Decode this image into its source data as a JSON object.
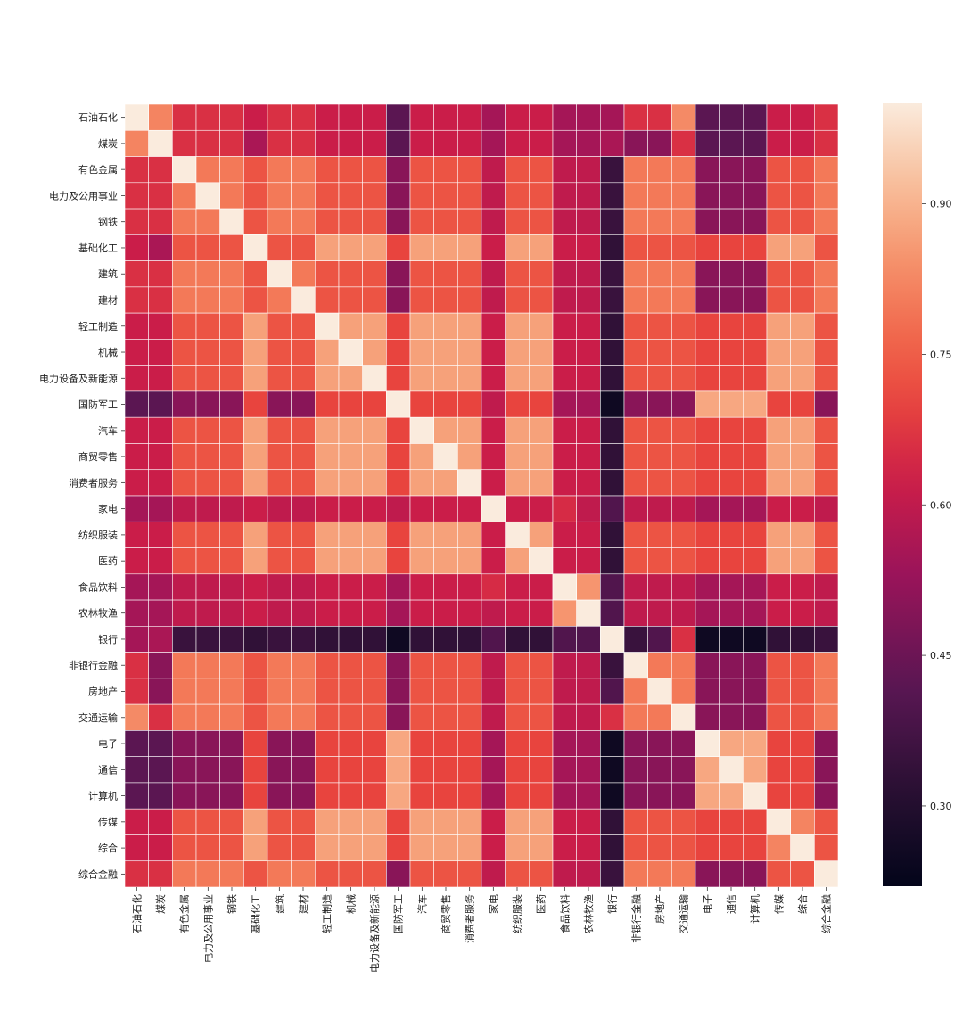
{
  "chart_data": {
    "type": "heatmap",
    "title": "",
    "xlabel": "",
    "ylabel": "",
    "labels": [
      "石油石化",
      "煤炭",
      "有色金属",
      "电力及公用事业",
      "钢铁",
      "基础化工",
      "建筑",
      "建材",
      "轻工制造",
      "机械",
      "电力设备及新能源",
      "国防军工",
      "汽车",
      "商贸零售",
      "消费者服务",
      "家电",
      "纺织服装",
      "医药",
      "食品饮料",
      "农林牧渔",
      "银行",
      "非银行金融",
      "房地产",
      "交通运输",
      "电子",
      "通信",
      "计算机",
      "传媒",
      "综合",
      "综合金融"
    ],
    "groups": [
      0,
      0,
      1,
      1,
      1,
      2,
      1,
      1,
      2,
      2,
      2,
      3,
      2,
      2,
      2,
      5,
      2,
      2,
      5,
      5,
      4,
      1,
      1,
      1,
      3,
      3,
      3,
      2,
      2,
      1
    ],
    "exceptions": [
      [
        0,
        1,
        0.82
      ],
      [
        0,
        23,
        0.83
      ],
      [
        1,
        5,
        0.56
      ],
      [
        1,
        20,
        0.56
      ],
      [
        1,
        21,
        0.5
      ],
      [
        1,
        22,
        0.5
      ],
      [
        20,
        22,
        0.4
      ],
      [
        20,
        23,
        0.66
      ],
      [
        11,
        15,
        0.6
      ],
      [
        15,
        18,
        0.65
      ],
      [
        15,
        19,
        0.6
      ],
      [
        27,
        28,
        0.82
      ]
    ],
    "colorbar": {
      "ticks": [
        0.3,
        0.45,
        0.6,
        0.75,
        0.9
      ],
      "tick_labels": [
        "0.30",
        "0.45",
        "0.60",
        "0.75",
        "0.90"
      ],
      "vmin": 0.22,
      "vmax": 1.0
    },
    "colorscale": "rocket"
  }
}
